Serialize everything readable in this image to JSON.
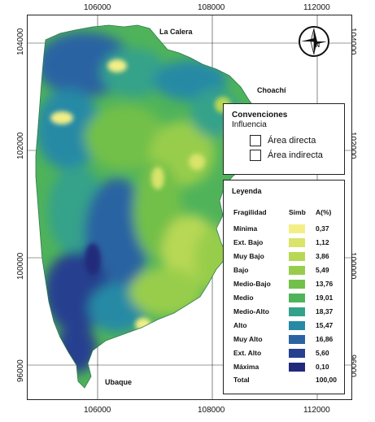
{
  "axis": {
    "x_ticks": [
      "106000",
      "108000",
      "112000"
    ],
    "y_ticks": [
      "104000",
      "102000",
      "100000",
      "96000"
    ]
  },
  "places": {
    "north": "La Calera",
    "east": "Choachí",
    "south": "Ubaque"
  },
  "compass": {
    "letter": "N"
  },
  "conventions": {
    "title_line1": "Convenciones",
    "title_line2": "Influencia",
    "items": [
      "Área directa",
      "Área indirecta"
    ]
  },
  "legend": {
    "title": "Leyenda",
    "col_class": "Fragilidad",
    "col_symbol": "Simb",
    "col_percent": "A(%)",
    "classes": [
      {
        "name": "Mínima",
        "percent": "0,37",
        "color": "#f3ef86"
      },
      {
        "name": "Ext. Bajo",
        "percent": "1,12",
        "color": "#d8e46a"
      },
      {
        "name": "Muy Bajo",
        "percent": "3,86",
        "color": "#b7d855"
      },
      {
        "name": "Bajo",
        "percent": "5,49",
        "color": "#98cd4c"
      },
      {
        "name": "Medio-Bajo",
        "percent": "13,76",
        "color": "#72c049"
      },
      {
        "name": "Medio",
        "percent": "19,01",
        "color": "#4fb35a"
      },
      {
        "name": "Medio-Alto",
        "percent": "18,37",
        "color": "#34a28a"
      },
      {
        "name": "Alto",
        "percent": "15,47",
        "color": "#268aa5"
      },
      {
        "name": "Muy Alto",
        "percent": "16,86",
        "color": "#2b63a2"
      },
      {
        "name": "Ext. Alto",
        "percent": "5,60",
        "color": "#263f8f"
      },
      {
        "name": "Máxima",
        "percent": "0,10",
        "color": "#23297a"
      }
    ],
    "total_label": "Total",
    "total_value": "100,00"
  }
}
